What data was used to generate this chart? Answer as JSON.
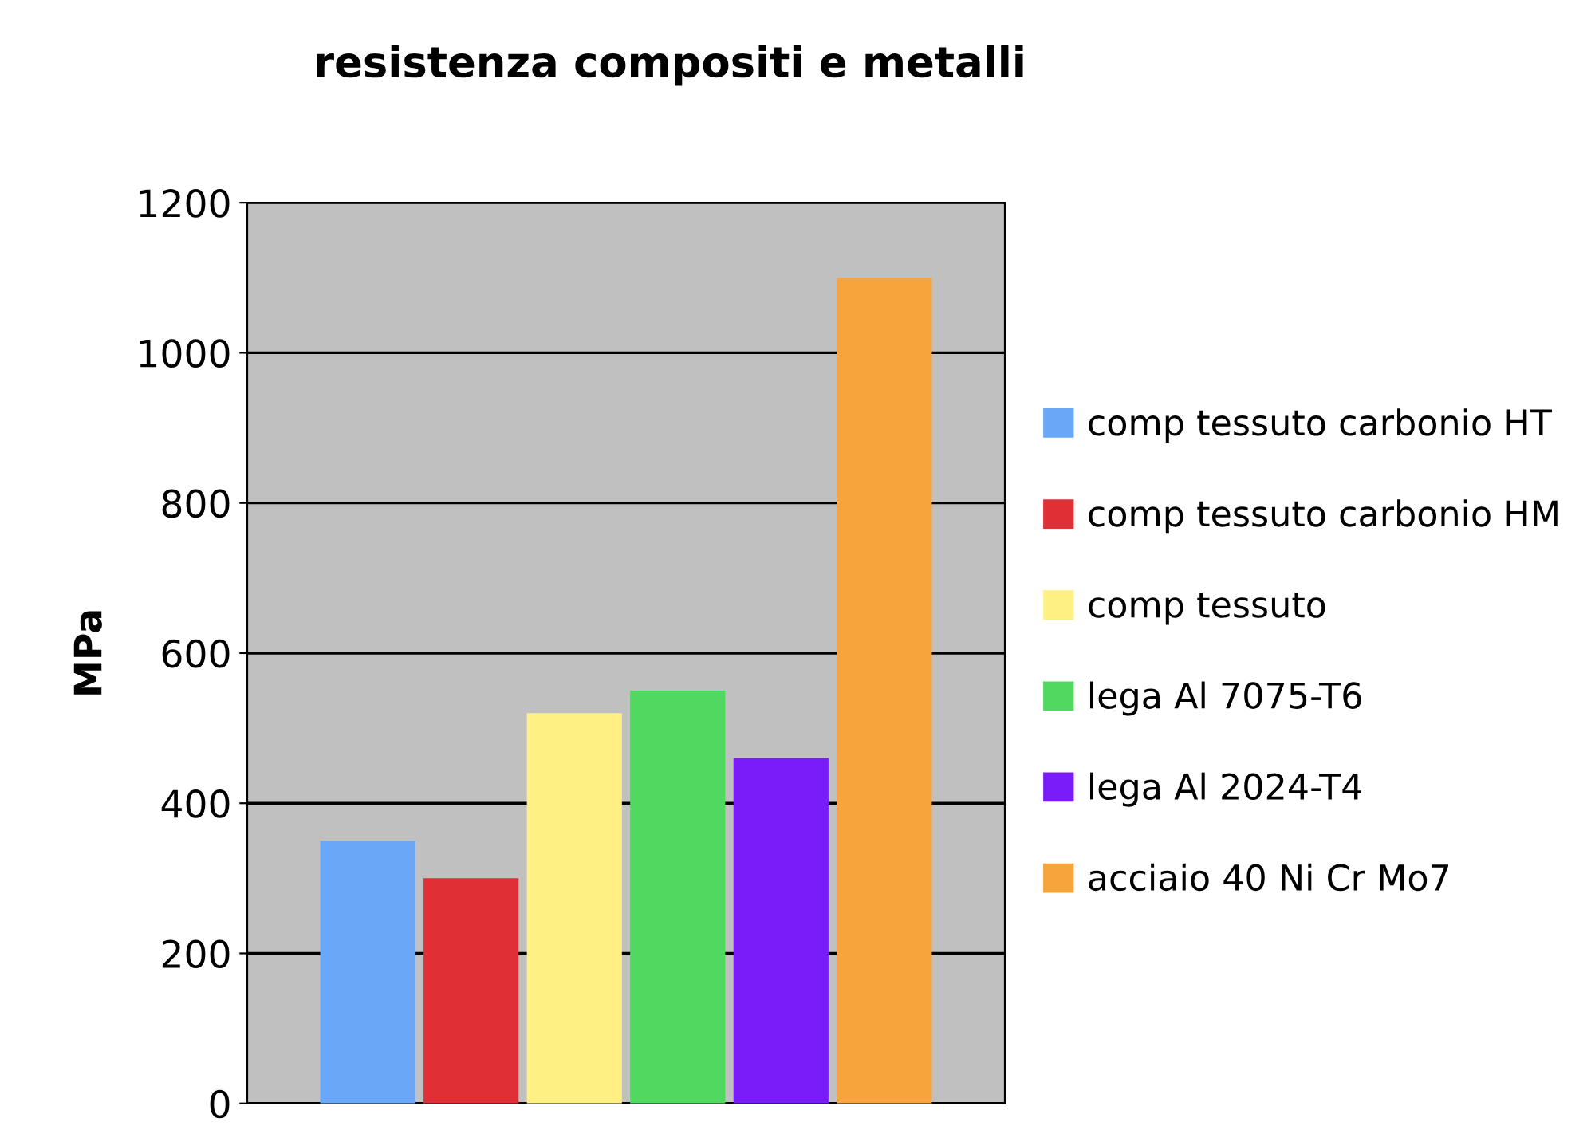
{
  "chart_data": {
    "type": "bar",
    "title": "resistenza compositi e metalli",
    "ylabel": "MPa",
    "categories": [
      null
    ],
    "series": [
      {
        "name": "comp tessuto carbonio HT",
        "color": "#6aa8f7",
        "values": [
          350
        ]
      },
      {
        "name": "comp tessuto carbonio HM",
        "color": "#e03036",
        "values": [
          300
        ]
      },
      {
        "name": "comp tessuto",
        "color": "#fff084",
        "values": [
          520
        ]
      },
      {
        "name": "lega Al 7075-T6",
        "color": "#50d860",
        "values": [
          550
        ]
      },
      {
        "name": "lega Al 2024-T4",
        "color": "#7a1cf8",
        "values": [
          460
        ]
      },
      {
        "name": "acciaio 40 Ni Cr Mo7",
        "color": "#f7a43c",
        "values": [
          1100
        ]
      }
    ],
    "ylim": [
      0,
      1200
    ],
    "yticks": [
      0,
      200,
      400,
      600,
      800,
      1000,
      1200
    ],
    "grid": "y",
    "legend": "right"
  }
}
